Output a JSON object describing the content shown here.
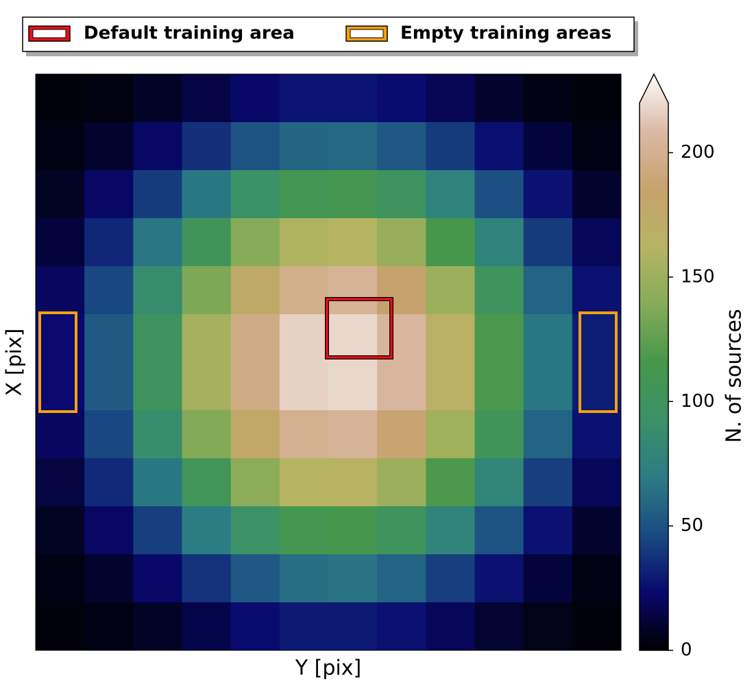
{
  "chart_data": {
    "type": "heatmap",
    "xlabel": "Y [pix]",
    "ylabel": "X [pix]",
    "colorbar_label": "N. of sources",
    "clim": [
      0,
      220
    ],
    "cticks": [
      0,
      50,
      100,
      150,
      200
    ],
    "colormap": [
      "#000000",
      "#08086e",
      "#1a4a82",
      "#2c7c84",
      "#3a9168",
      "#46974c",
      "#86ab58",
      "#b6b462",
      "#c6a26c",
      "#dbb9a5",
      "#fdfbfb"
    ],
    "regions": [
      {
        "name": "Default training area",
        "color": "#e8101a"
      },
      {
        "name": "Empty training areas",
        "color": "#f5a00f"
      }
    ],
    "values": [
      [
        2,
        3,
        8,
        14,
        21,
        26,
        26,
        23,
        17,
        9,
        4,
        2
      ],
      [
        4,
        9,
        20,
        35,
        48,
        56,
        57,
        50,
        39,
        24,
        12,
        4
      ],
      [
        7,
        20,
        39,
        64,
        88,
        104,
        106,
        95,
        72,
        46,
        25,
        9
      ],
      [
        12,
        32,
        63,
        99,
        132,
        151,
        153,
        140,
        110,
        73,
        39,
        18
      ],
      [
        19,
        43,
        84,
        129,
        167,
        188,
        192,
        176,
        142,
        97,
        55,
        25
      ],
      [
        22,
        51,
        96,
        146,
        185,
        206,
        208,
        195,
        160,
        111,
        64,
        29
      ],
      [
        22,
        51,
        96,
        146,
        185,
        206,
        208,
        195,
        160,
        111,
        64,
        29
      ],
      [
        19,
        43,
        85,
        131,
        169,
        190,
        193,
        178,
        144,
        99,
        55,
        25
      ],
      [
        13,
        33,
        64,
        101,
        135,
        154,
        157,
        142,
        112,
        75,
        40,
        18
      ],
      [
        7,
        20,
        40,
        66,
        91,
        106,
        109,
        97,
        74,
        48,
        25,
        9
      ],
      [
        4,
        9,
        21,
        36,
        50,
        60,
        62,
        55,
        40,
        25,
        12,
        4
      ],
      [
        2,
        4,
        8,
        15,
        23,
        28,
        28,
        25,
        18,
        10,
        5,
        2
      ]
    ]
  }
}
